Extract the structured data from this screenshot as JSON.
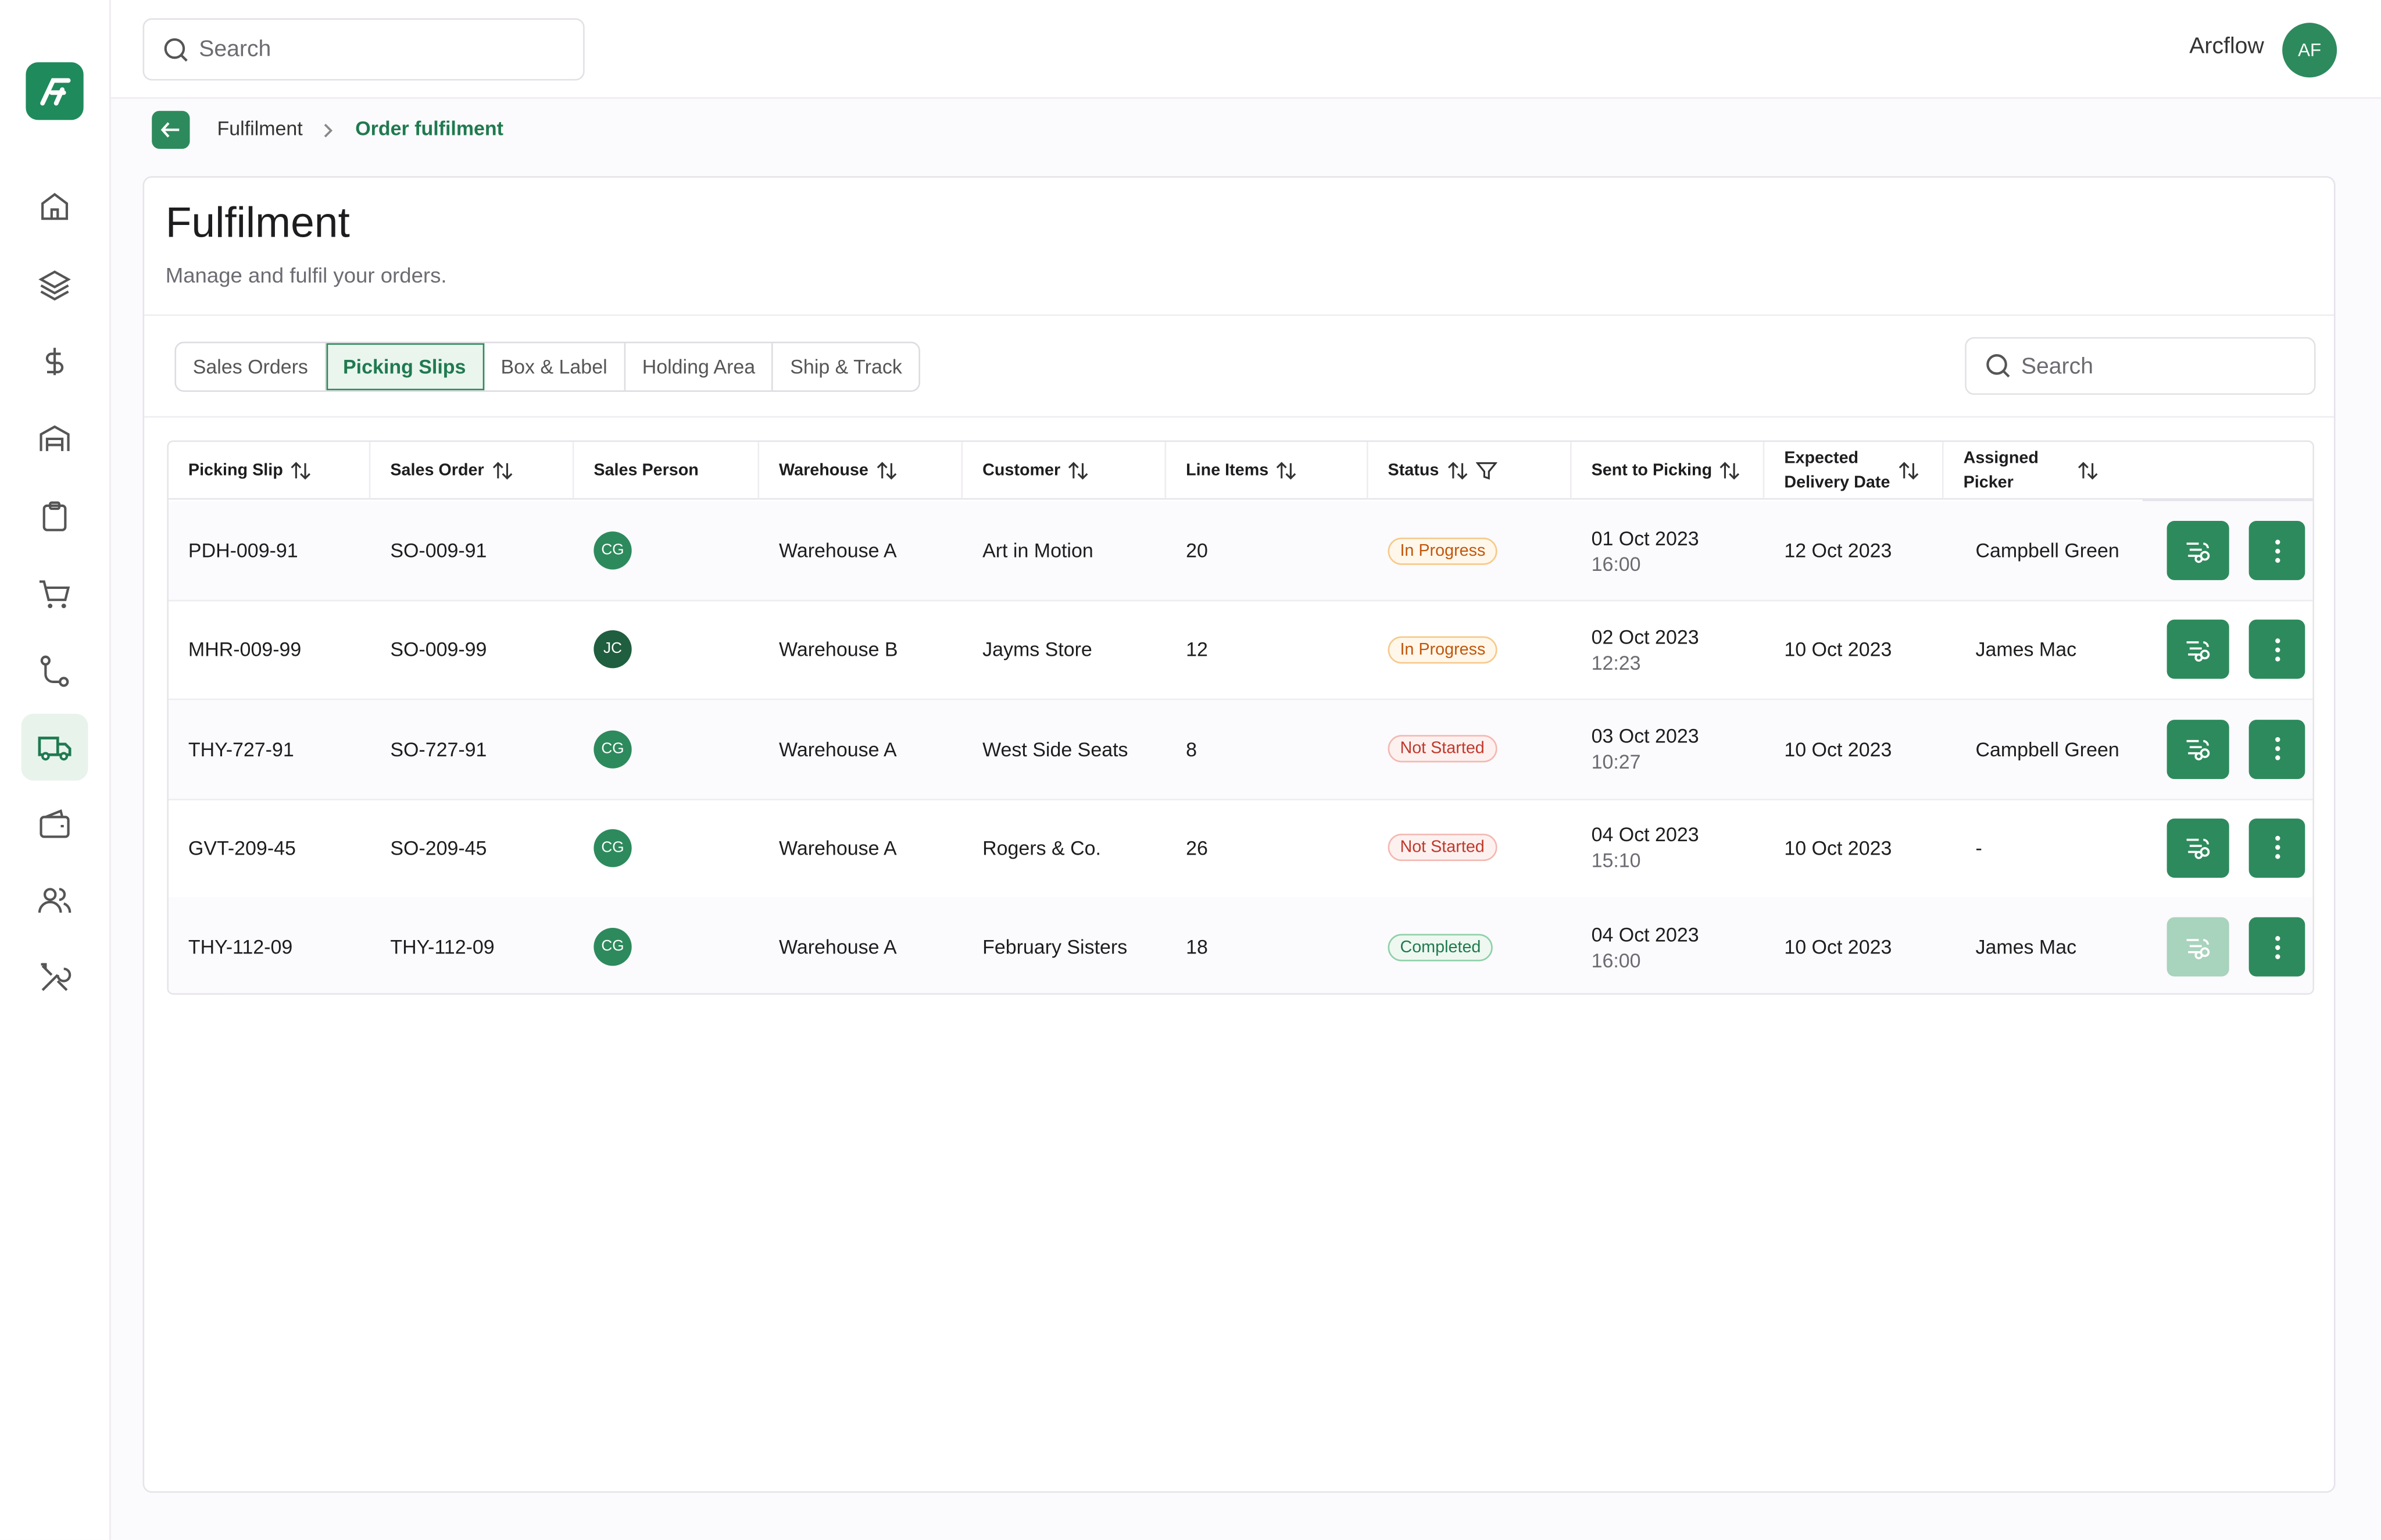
{
  "top_search": "Search",
  "user": {
    "name": "Arcflow",
    "initials": "AF"
  },
  "breadcrumb": [
    "Fulfilment",
    "Order fulfilment"
  ],
  "header": {
    "title": "Fulfilment",
    "subtitle": "Manage and fulfil your orders."
  },
  "tabs": [
    "Sales Orders",
    "Picking Slips",
    "Box & Label",
    "Holding Area",
    "Ship & Track"
  ],
  "active_tab": 1,
  "table_search": "Search",
  "table": {
    "columns": [
      {
        "label": "Picking Slip",
        "sortable": true
      },
      {
        "label": "Sales Order",
        "sortable": true
      },
      {
        "label": "Sales Person",
        "sortable": false
      },
      {
        "label": "Warehouse",
        "sortable": true
      },
      {
        "label": "Customer",
        "sortable": true
      },
      {
        "label": "Line Items",
        "sortable": true
      },
      {
        "label": "Status",
        "sortable": true,
        "filter": true
      },
      {
        "label": "Sent to Picking",
        "sortable": true
      },
      {
        "label": "Expected Delivery Date",
        "sortable": true
      },
      {
        "label": "Assigned Picker",
        "sortable": true
      }
    ],
    "rows": [
      {
        "picking_slip": "PDH-009-91",
        "sales_order": "SO-009-91",
        "sales_person": {
          "initials": "CG",
          "color": "#2d8a5c"
        },
        "warehouse": "Warehouse A",
        "customer": "Art in Motion",
        "line_items": 20,
        "status": {
          "label": "In Progress",
          "color": "#c2570c",
          "background": "#fff7ea",
          "border": "#f6c98b"
        },
        "sent_date": "01 Oct 2023",
        "sent_time": "16:00",
        "expected_delivery": "12 Oct 2023",
        "picker": "Campbell Green",
        "pick_enabled": true
      },
      {
        "picking_slip": "MHR-009-99",
        "sales_order": "SO-009-99",
        "sales_person": {
          "initials": "JC",
          "color": "#1f5e3e"
        },
        "warehouse": "Warehouse B",
        "customer": "Jayms Store",
        "line_items": 12,
        "status": {
          "label": "In Progress",
          "color": "#c2570c",
          "background": "#fff7ea",
          "border": "#f6c98b"
        },
        "sent_date": "02 Oct 2023",
        "sent_time": "12:23",
        "expected_delivery": "10 Oct 2023",
        "picker": "James Mac",
        "pick_enabled": true
      },
      {
        "picking_slip": "THY-727-91",
        "sales_order": "SO-727-91",
        "sales_person": {
          "initials": "CG",
          "color": "#2d8a5c"
        },
        "warehouse": "Warehouse A",
        "customer": "West Side Seats",
        "line_items": 8,
        "status": {
          "label": "Not Started",
          "color": "#c0392b",
          "background": "#fdf1f0",
          "border": "#f3b8b1"
        },
        "sent_date": "03 Oct 2023",
        "sent_time": "10:27",
        "expected_delivery": "10 Oct 2023",
        "picker": "Campbell Green",
        "pick_enabled": true
      },
      {
        "picking_slip": "GVT-209-45",
        "sales_order": "SO-209-45",
        "sales_person": {
          "initials": "CG",
          "color": "#2d8a5c"
        },
        "warehouse": "Warehouse A",
        "customer": "Rogers & Co.",
        "line_items": 26,
        "status": {
          "label": "Not Started",
          "color": "#c0392b",
          "background": "#fdf1f0",
          "border": "#f3b8b1"
        },
        "sent_date": "04 Oct 2023",
        "sent_time": "15:10",
        "expected_delivery": "10 Oct 2023",
        "picker": "-",
        "pick_enabled": true
      },
      {
        "picking_slip": "THY-112-09",
        "sales_order": "THY-112-09",
        "sales_person": {
          "initials": "CG",
          "color": "#2d8a5c"
        },
        "warehouse": "Warehouse A",
        "customer": "February Sisters",
        "line_items": 18,
        "status": {
          "label": "Completed",
          "color": "#1f7a4f",
          "background": "#eef8f1",
          "border": "#8fd0a8"
        },
        "sent_date": "04 Oct 2023",
        "sent_time": "16:00",
        "expected_delivery": "10 Oct 2023",
        "picker": "James Mac",
        "pick_enabled": false
      }
    ]
  }
}
